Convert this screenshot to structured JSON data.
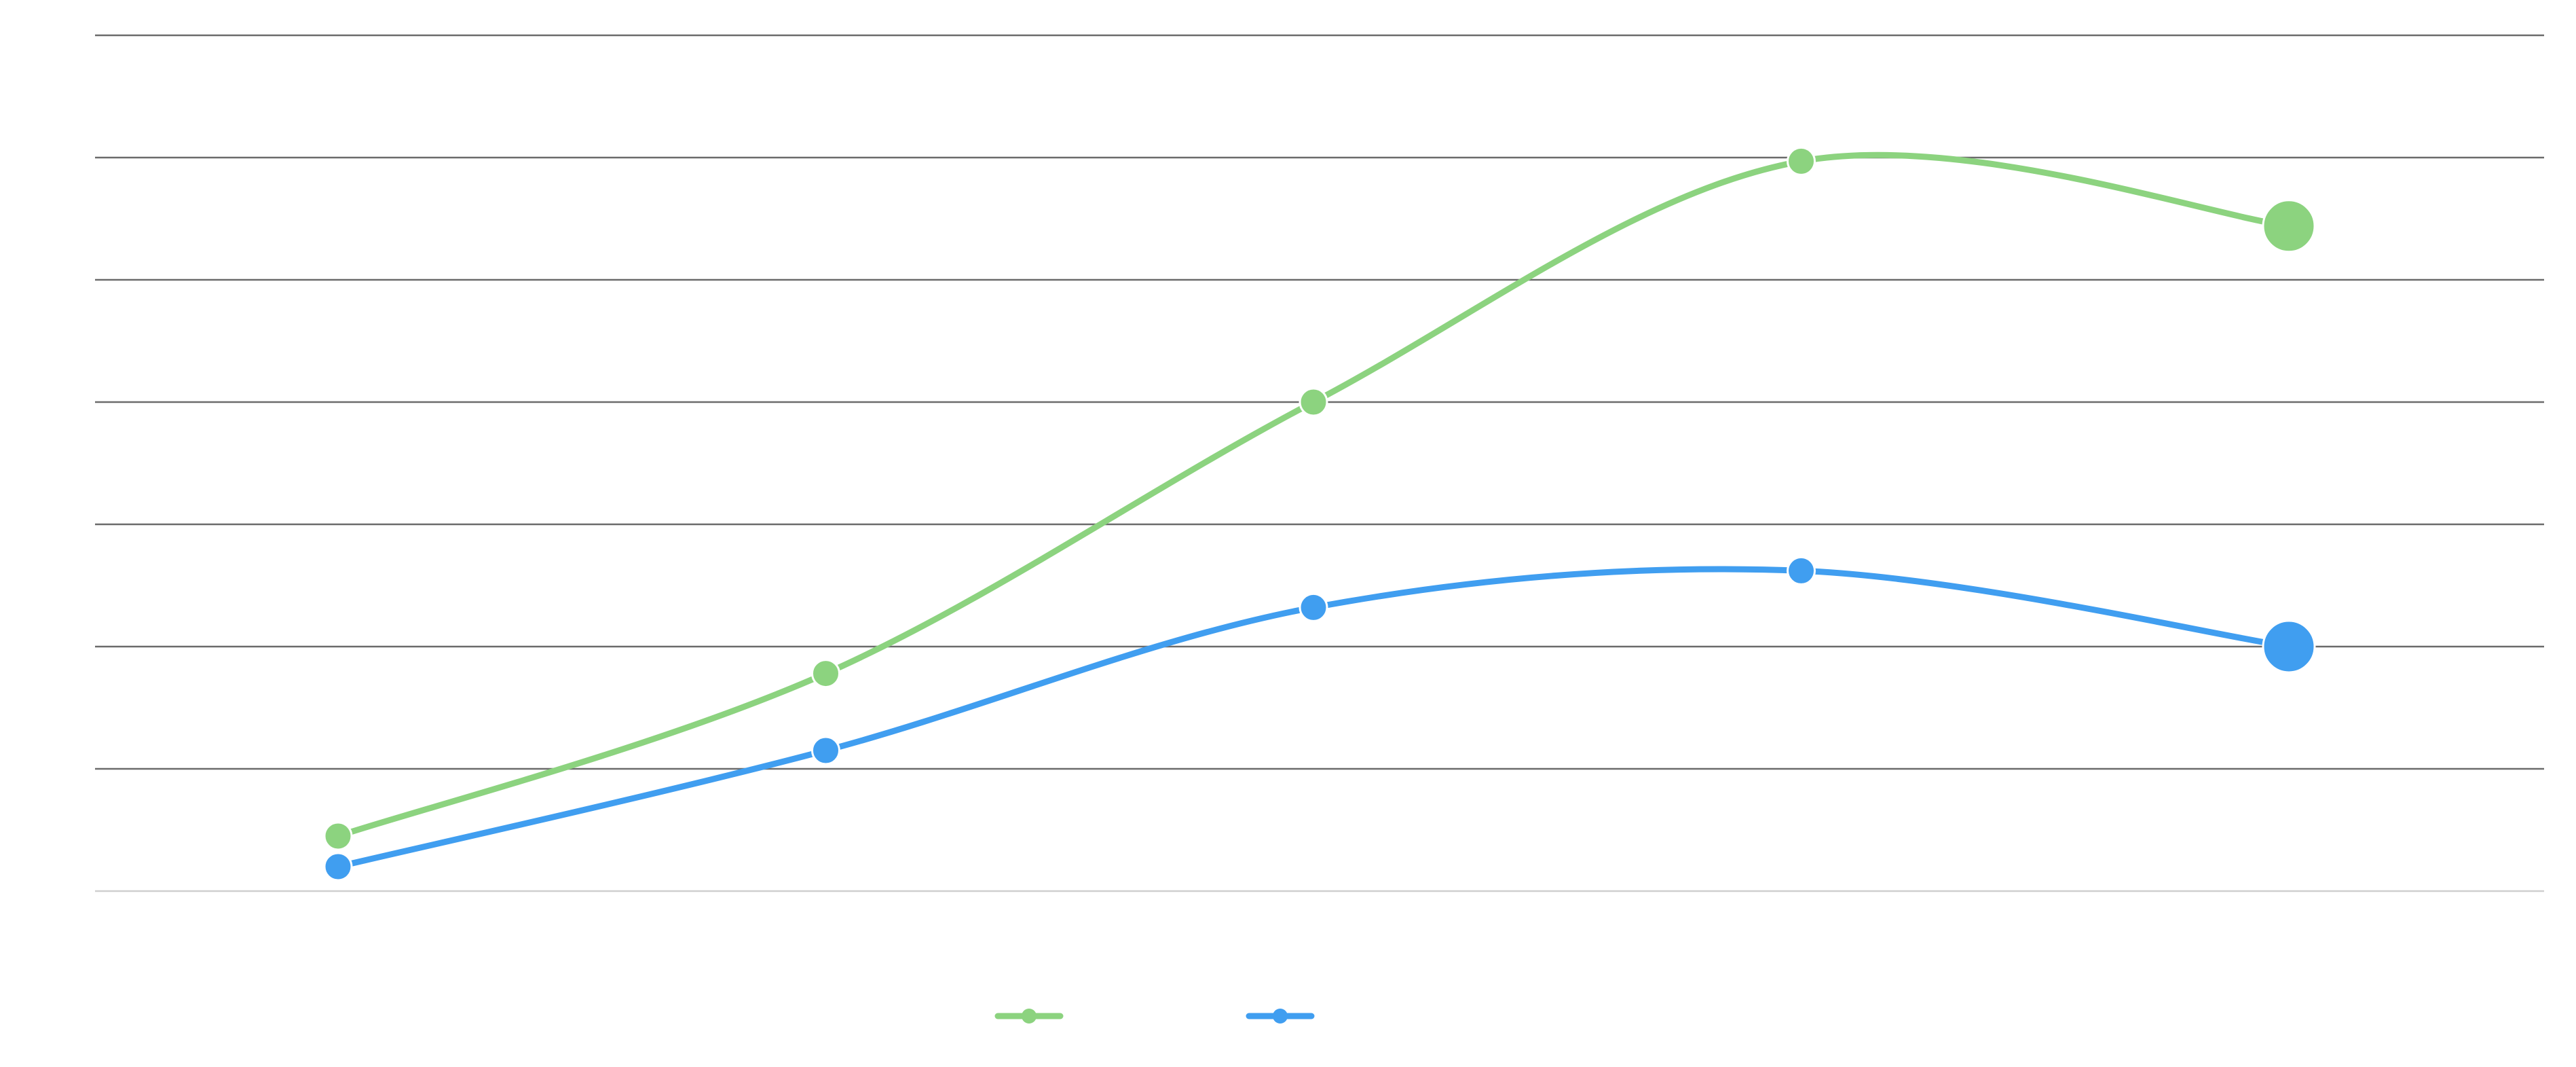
{
  "chart_data": {
    "type": "line",
    "curve": "smooth",
    "categories": [
      "",
      "",
      "",
      "",
      ""
    ],
    "ylim": [
      0,
      7
    ],
    "grid": true,
    "legend_position": "bottom-center",
    "last_point_emphasized": true,
    "series": [
      {
        "name": "",
        "color": "#8cd37f",
        "values": [
          0.45,
          1.78,
          4.0,
          5.97,
          5.44
        ]
      },
      {
        "name": "",
        "color": "#409ef0",
        "values": [
          0.2,
          1.15,
          2.32,
          2.62,
          2.0
        ]
      }
    ]
  }
}
